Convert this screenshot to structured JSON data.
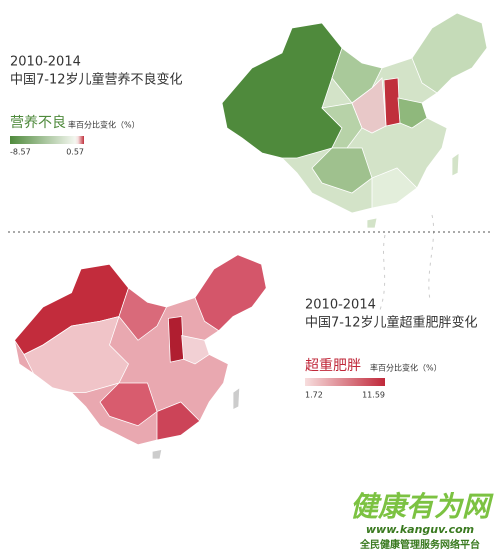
{
  "top": {
    "period": "2010-2014",
    "title": "中国7-12岁儿童营养不良变化",
    "legend_title": "营养不良",
    "legend_unit": "率百分比变化（%）",
    "legend_min": -8.57,
    "legend_max": 0.57
  },
  "bottom": {
    "period": "2010-2014",
    "title": "中国7-12岁儿童超重肥胖变化",
    "legend_title": "超重肥胖",
    "legend_unit": "率百分比变化（%）",
    "legend_min": 1.72,
    "legend_max": 11.59
  },
  "logo": {
    "name": "健康有为网",
    "url": "www.kanguv.com",
    "slogan": "全民健康管理服务网络平台"
  }
}
